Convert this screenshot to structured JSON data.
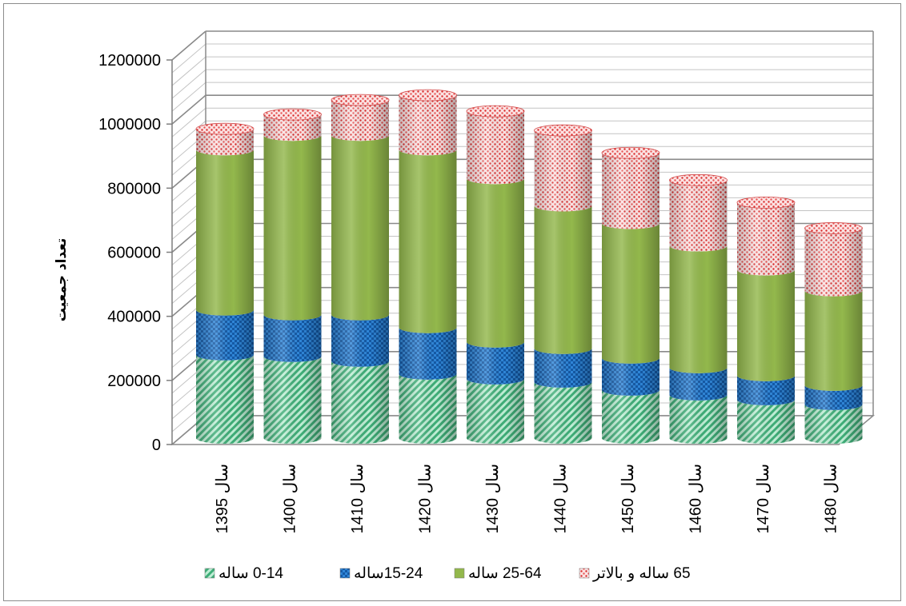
{
  "chart_data": {
    "type": "bar",
    "stacked": true,
    "style": "3d-cylinder",
    "title": "",
    "xlabel": "",
    "ylabel": "تعداد جمعیت",
    "ylim": [
      0,
      1200000
    ],
    "yticks": [
      "0",
      "200000",
      "400000",
      "600000",
      "800000",
      "1000000",
      "1200000"
    ],
    "grid": true,
    "legend_position": "bottom",
    "categories": [
      "سال 1395",
      "سال 1400",
      "سال 1410",
      "سال 1420",
      "سال 1430",
      "سال 1440",
      "سال 1450",
      "سال 1460",
      "سال 1470",
      "سال 1480"
    ],
    "series": [
      {
        "name": "0-14 ساله",
        "color": "#5cc48f",
        "pattern": "diagonal-stripes",
        "values": [
          260000,
          255000,
          240000,
          200000,
          185000,
          175000,
          150000,
          135000,
          120000,
          105000
        ]
      },
      {
        "name": "15-24ساله",
        "color": "#1f6fc5",
        "pattern": "checker",
        "values": [
          140000,
          130000,
          145000,
          145000,
          115000,
          105000,
          100000,
          85000,
          75000,
          60000
        ]
      },
      {
        "name": "25-64 ساله",
        "color": "#93b84c",
        "pattern": "solid",
        "values": [
          500000,
          560000,
          560000,
          555000,
          510000,
          445000,
          420000,
          380000,
          330000,
          295000
        ]
      },
      {
        "name": "65 ساله و بالاتر",
        "color": "#e03a3a",
        "pattern": "dots",
        "values": [
          65000,
          65000,
          110000,
          170000,
          210000,
          235000,
          220000,
          205000,
          210000,
          195000
        ]
      }
    ]
  }
}
